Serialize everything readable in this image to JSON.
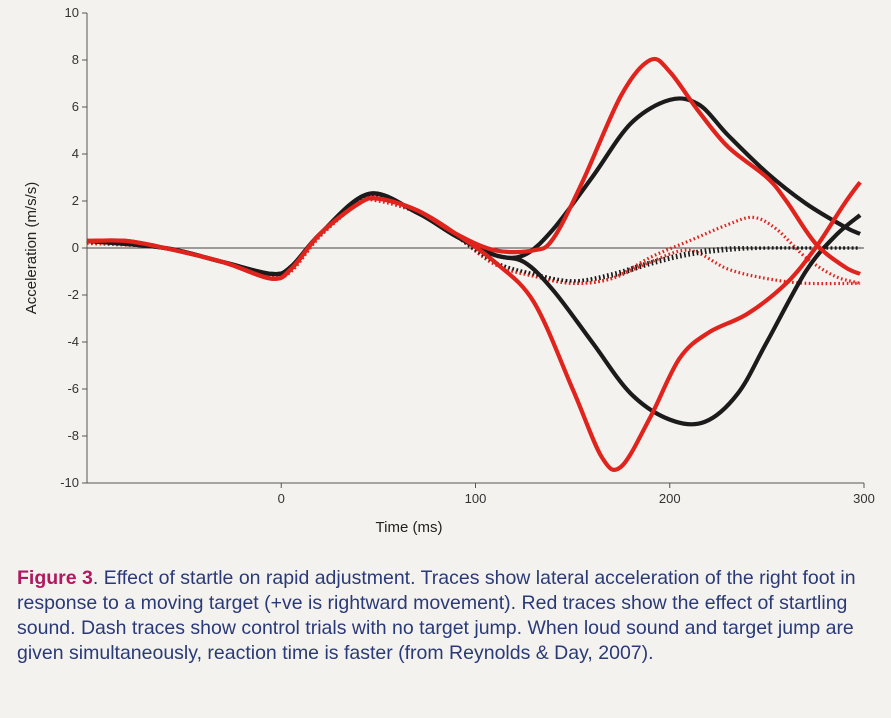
{
  "chart_data": {
    "type": "line",
    "xlabel": "Time (ms)",
    "ylabel": "Acceleration (m/s/s)",
    "xlim": [
      -100,
      300
    ],
    "ylim": [
      -10,
      10
    ],
    "x_ticks": [
      0,
      100,
      200,
      300
    ],
    "y_ticks": [
      10,
      8,
      6,
      4,
      2,
      0,
      -2,
      -4,
      -6,
      -8,
      -10
    ],
    "zero_line": true,
    "legend": "none",
    "series": [
      {
        "color": "#e0231c",
        "dash": true,
        "points": [
          [
            -100,
            0.2
          ],
          [
            -60,
            0
          ],
          [
            -30,
            -0.6
          ],
          [
            -5,
            -1.2
          ],
          [
            5,
            -1
          ],
          [
            20,
            0.5
          ],
          [
            40,
            1.9
          ],
          [
            50,
            2
          ],
          [
            70,
            1.5
          ],
          [
            90,
            0.5
          ],
          [
            110,
            -0.7
          ],
          [
            130,
            -1.2
          ],
          [
            150,
            -1.5
          ],
          [
            170,
            -1.3
          ],
          [
            190,
            -0.4
          ],
          [
            210,
            0.3
          ],
          [
            230,
            1
          ],
          [
            243,
            1.3
          ],
          [
            255,
            0.8
          ],
          [
            270,
            -0.4
          ],
          [
            285,
            -1.2
          ],
          [
            298,
            -1.5
          ]
        ]
      },
      {
        "color": "#e0231c",
        "dash": true,
        "points": [
          [
            -100,
            0.2
          ],
          [
            -60,
            0
          ],
          [
            -30,
            -0.6
          ],
          [
            -5,
            -1.2
          ],
          [
            5,
            -1
          ],
          [
            20,
            0.5
          ],
          [
            40,
            1.9
          ],
          [
            50,
            2
          ],
          [
            70,
            1.5
          ],
          [
            90,
            0.5
          ],
          [
            110,
            -0.7
          ],
          [
            130,
            -1.2
          ],
          [
            150,
            -1.5
          ],
          [
            170,
            -1.3
          ],
          [
            190,
            -0.6
          ],
          [
            210,
            -0.1
          ],
          [
            230,
            -0.9
          ],
          [
            250,
            -1.3
          ],
          [
            270,
            -1.5
          ],
          [
            298,
            -1.5
          ]
        ]
      },
      {
        "color": "#1b1b1b",
        "dash": true,
        "points": [
          [
            -100,
            0.3
          ],
          [
            -60,
            0
          ],
          [
            -30,
            -0.6
          ],
          [
            -5,
            -1.1
          ],
          [
            5,
            -0.8
          ],
          [
            20,
            0.6
          ],
          [
            45,
            2.2
          ],
          [
            70,
            1.5
          ],
          [
            90,
            0.5
          ],
          [
            110,
            -0.6
          ],
          [
            130,
            -1.1
          ],
          [
            150,
            -1.4
          ],
          [
            170,
            -1.1
          ],
          [
            190,
            -0.6
          ],
          [
            210,
            -0.2
          ],
          [
            230,
            0
          ],
          [
            250,
            0
          ],
          [
            270,
            0
          ],
          [
            298,
            0
          ]
        ]
      },
      {
        "color": "#1b1b1b",
        "dash": true,
        "points": [
          [
            -100,
            0.3
          ],
          [
            -60,
            0
          ],
          [
            -30,
            -0.6
          ],
          [
            -5,
            -1.1
          ],
          [
            5,
            -0.8
          ],
          [
            20,
            0.6
          ],
          [
            45,
            2.2
          ],
          [
            70,
            1.5
          ],
          [
            90,
            0.5
          ],
          [
            110,
            -0.6
          ],
          [
            130,
            -1.1
          ],
          [
            150,
            -1.4
          ],
          [
            170,
            -1.2
          ],
          [
            190,
            -0.7
          ],
          [
            210,
            -0.3
          ],
          [
            230,
            -0.1
          ],
          [
            250,
            0
          ],
          [
            270,
            0
          ],
          [
            298,
            0
          ]
        ]
      },
      {
        "color": "#1b1b1b",
        "dash": false,
        "points": [
          [
            -100,
            0.3
          ],
          [
            -60,
            0
          ],
          [
            -30,
            -0.6
          ],
          [
            -5,
            -1.1
          ],
          [
            5,
            -0.8
          ],
          [
            20,
            0.6
          ],
          [
            45,
            2.3
          ],
          [
            70,
            1.5
          ],
          [
            90,
            0.5
          ],
          [
            110,
            -0.3
          ],
          [
            125,
            -0.3
          ],
          [
            140,
            0.8
          ],
          [
            160,
            3
          ],
          [
            180,
            5.3
          ],
          [
            200,
            6.3
          ],
          [
            215,
            6.1
          ],
          [
            230,
            4.8
          ],
          [
            250,
            3.2
          ],
          [
            270,
            1.9
          ],
          [
            290,
            0.9
          ],
          [
            298,
            0.6
          ]
        ]
      },
      {
        "color": "#1b1b1b",
        "dash": false,
        "points": [
          [
            -100,
            0.3
          ],
          [
            -60,
            0
          ],
          [
            -30,
            -0.6
          ],
          [
            -5,
            -1.1
          ],
          [
            5,
            -0.8
          ],
          [
            20,
            0.6
          ],
          [
            45,
            2.3
          ],
          [
            70,
            1.5
          ],
          [
            90,
            0.5
          ],
          [
            110,
            -0.3
          ],
          [
            125,
            -0.6
          ],
          [
            140,
            -1.8
          ],
          [
            160,
            -4
          ],
          [
            180,
            -6.2
          ],
          [
            200,
            -7.3
          ],
          [
            218,
            -7.4
          ],
          [
            235,
            -6.2
          ],
          [
            250,
            -4
          ],
          [
            270,
            -1
          ],
          [
            285,
            0.5
          ],
          [
            298,
            1.4
          ]
        ]
      },
      {
        "color": "#e0231c",
        "dash": false,
        "points": [
          [
            -100,
            0.3
          ],
          [
            -80,
            0.3
          ],
          [
            -60,
            0
          ],
          [
            -30,
            -0.6
          ],
          [
            -5,
            -1.3
          ],
          [
            5,
            -0.9
          ],
          [
            20,
            0.6
          ],
          [
            40,
            1.9
          ],
          [
            50,
            2.1
          ],
          [
            70,
            1.6
          ],
          [
            90,
            0.6
          ],
          [
            110,
            -0.1
          ],
          [
            130,
            -0.1
          ],
          [
            140,
            0.4
          ],
          [
            155,
            2.8
          ],
          [
            175,
            6.5
          ],
          [
            190,
            8
          ],
          [
            200,
            7.5
          ],
          [
            215,
            5.8
          ],
          [
            230,
            4.3
          ],
          [
            250,
            3
          ],
          [
            260,
            2
          ],
          [
            275,
            0.2
          ],
          [
            290,
            -0.8
          ],
          [
            298,
            -1.1
          ]
        ]
      },
      {
        "color": "#e0231c",
        "dash": false,
        "points": [
          [
            -100,
            0.3
          ],
          [
            -80,
            0.3
          ],
          [
            -60,
            0
          ],
          [
            -30,
            -0.6
          ],
          [
            -5,
            -1.3
          ],
          [
            5,
            -0.9
          ],
          [
            20,
            0.6
          ],
          [
            40,
            1.9
          ],
          [
            50,
            2.1
          ],
          [
            70,
            1.6
          ],
          [
            90,
            0.6
          ],
          [
            110,
            -0.6
          ],
          [
            130,
            -2.3
          ],
          [
            150,
            -6
          ],
          [
            165,
            -8.9
          ],
          [
            175,
            -9.3
          ],
          [
            190,
            -7.2
          ],
          [
            205,
            -4.7
          ],
          [
            220,
            -3.6
          ],
          [
            240,
            -2.8
          ],
          [
            260,
            -1.5
          ],
          [
            275,
            0
          ],
          [
            290,
            1.9
          ],
          [
            298,
            2.8
          ]
        ]
      }
    ]
  },
  "caption": {
    "label": "Figure 3",
    "text": ". Effect of startle on rapid adjustment. Traces show lateral acceleration of the right foot in response to a moving target (+ve is rightward movement). Red traces show the effect of startling sound. Dash traces show control trials with no target jump. When loud sound and target jump are given simultaneously, reaction time is faster (from Reynolds & Day, 2007)."
  }
}
